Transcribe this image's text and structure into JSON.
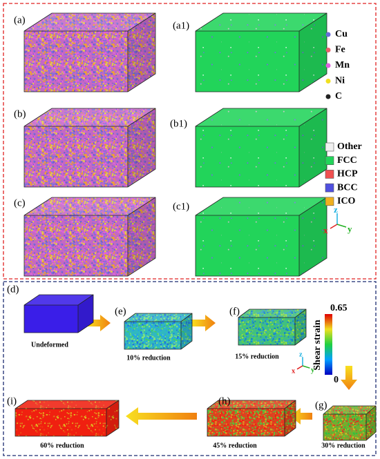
{
  "top_panel": {
    "panels": [
      {
        "label": "(a)"
      },
      {
        "label": "(a1)"
      },
      {
        "label": "(b)"
      },
      {
        "label": "(b1)"
      },
      {
        "label": "(c)"
      },
      {
        "label": "(c1)"
      }
    ],
    "atom_legend": [
      {
        "label": "Cu",
        "color": "#6a6ad8"
      },
      {
        "label": "Fe",
        "color": "#e8606a"
      },
      {
        "label": "Mn",
        "color": "#e060e0"
      },
      {
        "label": "Ni",
        "color": "#f0e020"
      },
      {
        "label": "C",
        "color": "#222222"
      }
    ],
    "structure_legend": [
      {
        "label": "Other",
        "color": "#f0f0f0"
      },
      {
        "label": "FCC",
        "color": "#22d45a"
      },
      {
        "label": "HCP",
        "color": "#f05050"
      },
      {
        "label": "BCC",
        "color": "#5050e0"
      },
      {
        "label": "ICO",
        "color": "#f0b020"
      }
    ],
    "axes": {
      "z": "z",
      "x": "x",
      "y": "y"
    }
  },
  "bottom_panel": {
    "panels": [
      {
        "label": "(d)",
        "caption": "Undeformed"
      },
      {
        "label": "(e)",
        "caption": "10% reduction"
      },
      {
        "label": "(f)",
        "caption": "15% reduction"
      },
      {
        "label": "(g)",
        "caption": "30% reduction"
      },
      {
        "label": "(h)",
        "caption": "45% reduction"
      },
      {
        "label": "(i)",
        "caption": "60% reduction"
      }
    ],
    "colorbar": {
      "title": "Shear strain",
      "max": 0.65,
      "min": 0
    },
    "axes": {
      "z": "z",
      "x": "x",
      "y": "y"
    }
  }
}
